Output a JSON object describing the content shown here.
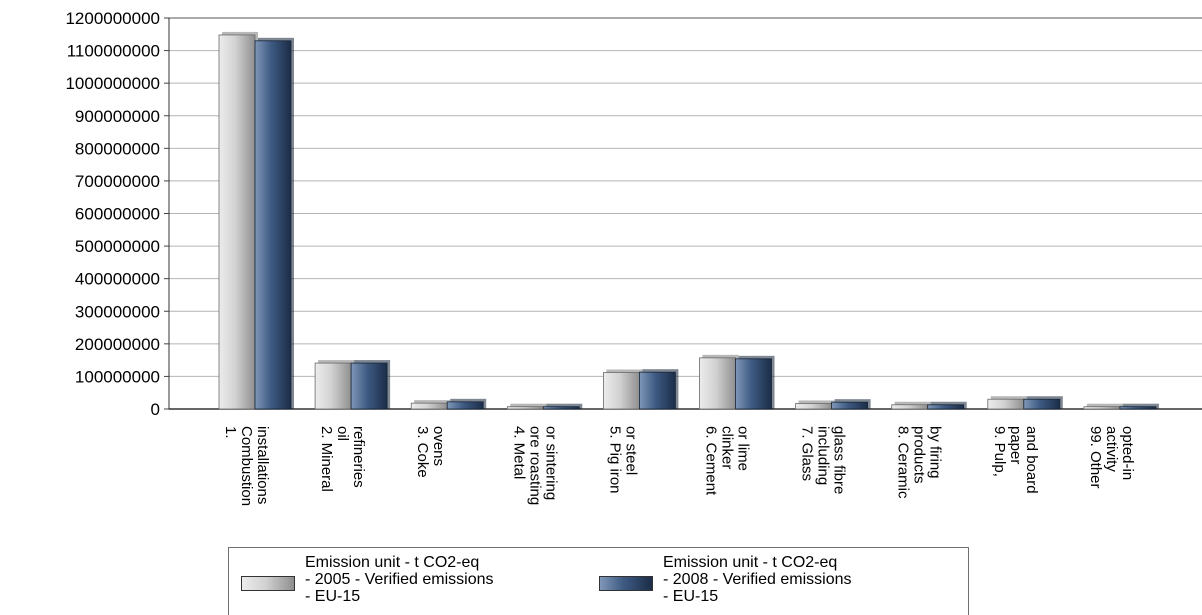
{
  "chart_data": {
    "type": "bar",
    "title": "",
    "xlabel": "",
    "ylabel": "",
    "ylim": [
      0,
      1200000000
    ],
    "yticks": [
      "0",
      "100000000",
      "200000000",
      "300000000",
      "400000000",
      "500000000",
      "600000000",
      "700000000",
      "800000000",
      "900000000",
      "1000000000",
      "1100000000",
      "1200000000"
    ],
    "grid": true,
    "legend_position": "bottom",
    "categories": [
      "1. Combustion installations",
      "2. Mineral oil refineries",
      "3. Coke ovens",
      "4. Metal ore roasting or sintering",
      "5. Pig iron or steel",
      "6. Cement clinker or lime",
      "7. Glass including glass fibre",
      "8. Ceramic products by firing",
      "9. Pulp, paper and board",
      "99. Other activity opted-in"
    ],
    "category_label_lines": [
      [
        "1.",
        "Combustion",
        "installations"
      ],
      [
        "2. Mineral",
        "oil",
        "refineries"
      ],
      [
        "3. Coke",
        "ovens"
      ],
      [
        "4. Metal",
        "ore roasting",
        "or sintering"
      ],
      [
        "5. Pig iron",
        "or steel"
      ],
      [
        "6. Cement",
        "clinker",
        "or lime"
      ],
      [
        "7. Glass",
        "including",
        "glass fibre"
      ],
      [
        "8. Ceramic",
        "products",
        "by firing"
      ],
      [
        "9. Pulp,",
        "paper",
        "and board"
      ],
      [
        "99. Other",
        "activity",
        "opted-in"
      ]
    ],
    "series": [
      {
        "name": "Emission unit - t CO2-eq - 2005 - Verified emissions - EU-15",
        "legend_lines": [
          "Emission unit - t CO2-eq",
          "- 2005 - Verified emissions",
          "- EU-15"
        ],
        "color": "#c4c4c4",
        "values": [
          1148000000,
          141000000,
          18000000,
          7000000,
          112000000,
          157000000,
          17000000,
          13000000,
          30000000,
          7000000
        ]
      },
      {
        "name": "Emission unit - t CO2-eq - 2008 - Verified emissions - EU-15",
        "legend_lines": [
          "Emission unit - t CO2-eq",
          "- 2008 - Verified emissions",
          "- EU-15"
        ],
        "color": "#2f4a70",
        "values": [
          1130000000,
          141000000,
          22000000,
          7000000,
          113000000,
          154000000,
          21000000,
          13000000,
          30000000,
          7000000
        ]
      }
    ]
  }
}
